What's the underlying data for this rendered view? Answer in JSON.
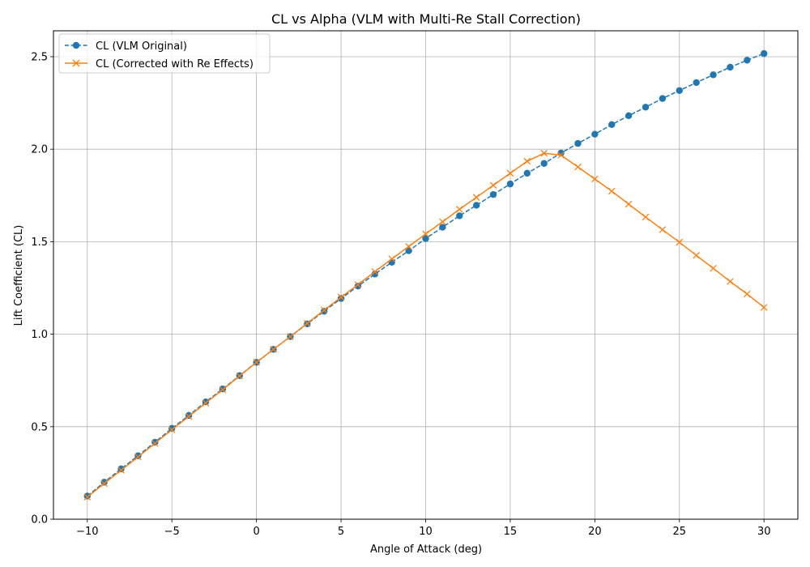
{
  "chart_data": {
    "type": "line",
    "title": "CL vs Alpha (VLM with Multi-Re Stall Correction)",
    "xlabel": "Angle of Attack (deg)",
    "ylabel": "Lift Coefficient (CL)",
    "xlim": [
      -12,
      32
    ],
    "ylim": [
      0.0,
      2.64
    ],
    "xticks": [
      -10,
      -5,
      0,
      5,
      10,
      15,
      20,
      25,
      30
    ],
    "xtick_labels": [
      "−10",
      "−5",
      "0",
      "5",
      "10",
      "15",
      "20",
      "25",
      "30"
    ],
    "yticks": [
      0.0,
      0.5,
      1.0,
      1.5,
      2.0,
      2.5
    ],
    "ytick_labels": [
      "0.0",
      "0.5",
      "1.0",
      "1.5",
      "2.0",
      "2.5"
    ],
    "grid": true,
    "legend_position": "top-left",
    "x": [
      -10,
      -9,
      -8,
      -7,
      -6,
      -5,
      -4,
      -3,
      -2,
      -1,
      0,
      1,
      2,
      3,
      4,
      5,
      6,
      7,
      8,
      9,
      10,
      11,
      12,
      13,
      14,
      15,
      16,
      17,
      18,
      19,
      20,
      21,
      22,
      23,
      24,
      25,
      26,
      27,
      28,
      29,
      30
    ],
    "series": [
      {
        "name": "CL (VLM Original)",
        "color": "#1f77b4",
        "style": "dashed",
        "marker": "circle",
        "values": [
          0.125,
          0.2,
          0.272,
          0.343,
          0.416,
          0.491,
          0.561,
          0.634,
          0.704,
          0.776,
          0.848,
          0.918,
          0.987,
          1.056,
          1.124,
          1.193,
          1.26,
          1.325,
          1.389,
          1.451,
          1.517,
          1.578,
          1.64,
          1.697,
          1.755,
          1.812,
          1.87,
          1.923,
          1.979,
          2.031,
          2.081,
          2.133,
          2.181,
          2.227,
          2.274,
          2.317,
          2.36,
          2.402,
          2.443,
          2.481,
          2.517
        ]
      },
      {
        "name": "CL (Corrected with Re Effects)",
        "color": "#ff7f0e",
        "style": "solid",
        "marker": "x",
        "values": [
          0.12,
          0.193,
          0.265,
          0.337,
          0.41,
          0.484,
          0.556,
          0.628,
          0.7,
          0.774,
          0.848,
          0.918,
          0.987,
          1.059,
          1.13,
          1.2,
          1.268,
          1.338,
          1.407,
          1.474,
          1.542,
          1.608,
          1.675,
          1.74,
          1.805,
          1.87,
          1.935,
          1.978,
          1.968,
          1.904,
          1.839,
          1.773,
          1.703,
          1.633,
          1.565,
          1.497,
          1.426,
          1.356,
          1.285,
          1.217,
          1.145
        ]
      }
    ]
  }
}
